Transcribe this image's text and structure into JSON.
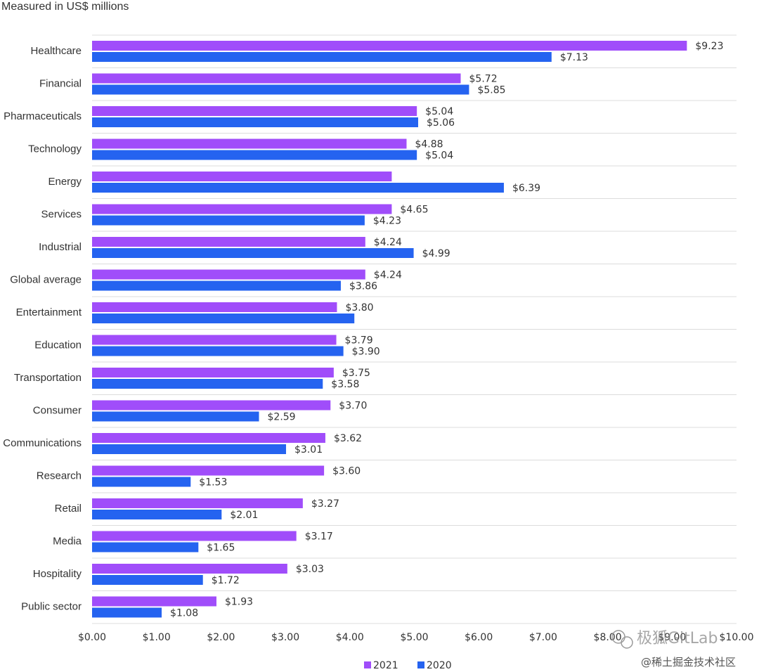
{
  "chart_data": {
    "type": "bar",
    "orientation": "horizontal",
    "subtitle": "Measured in US$ millions",
    "categories": [
      "Healthcare",
      "Financial",
      "Pharmaceuticals",
      "Technology",
      "Energy",
      "Services",
      "Industrial",
      "Global average",
      "Entertainment",
      "Education",
      "Transportation",
      "Consumer",
      "Communications",
      "Research",
      "Retail",
      "Media",
      "Hospitality",
      "Public sector"
    ],
    "series": [
      {
        "name": "2021",
        "color": "#a04dfa",
        "values": [
          9.23,
          5.72,
          5.04,
          4.88,
          4.65,
          4.65,
          4.24,
          4.24,
          3.8,
          3.79,
          3.75,
          3.7,
          3.62,
          3.6,
          3.27,
          3.17,
          3.03,
          1.93
        ],
        "labels": [
          "$9.23",
          "$5.72",
          "$5.04",
          "$4.88",
          "",
          "$4.65",
          "$4.24",
          "$4.24",
          "$3.80",
          "$3.79",
          "$3.75",
          "$3.70",
          "$3.62",
          "$3.60",
          "$3.27",
          "$3.17",
          "$3.03",
          "$1.93"
        ]
      },
      {
        "name": "2020",
        "color": "#2563f0",
        "values": [
          7.13,
          5.85,
          5.06,
          5.04,
          6.39,
          4.23,
          4.99,
          3.86,
          4.07,
          3.9,
          3.58,
          2.59,
          3.01,
          1.53,
          2.01,
          1.65,
          1.72,
          1.08
        ],
        "labels": [
          "$7.13",
          "$5.85",
          "$5.06",
          "$5.04",
          "$6.39",
          "$4.23",
          "$4.99",
          "$3.86",
          "",
          "$3.90",
          "$3.58",
          "$2.59",
          "$3.01",
          "$1.53",
          "$2.01",
          "$1.65",
          "$1.72",
          "$1.08"
        ]
      }
    ],
    "xlim": [
      0,
      10
    ],
    "xticks": [
      "$0.00",
      "$1.00",
      "$2.00",
      "$3.00",
      "$4.00",
      "$5.00",
      "$6.00",
      "$7.00",
      "$8.00",
      "$9.00",
      "$10.00"
    ],
    "grid": "horizontal separators",
    "legend": "bottom-center"
  },
  "watermark": {
    "line1": "极狐GitLab",
    "line2": "@稀土掘金技术社区"
  }
}
